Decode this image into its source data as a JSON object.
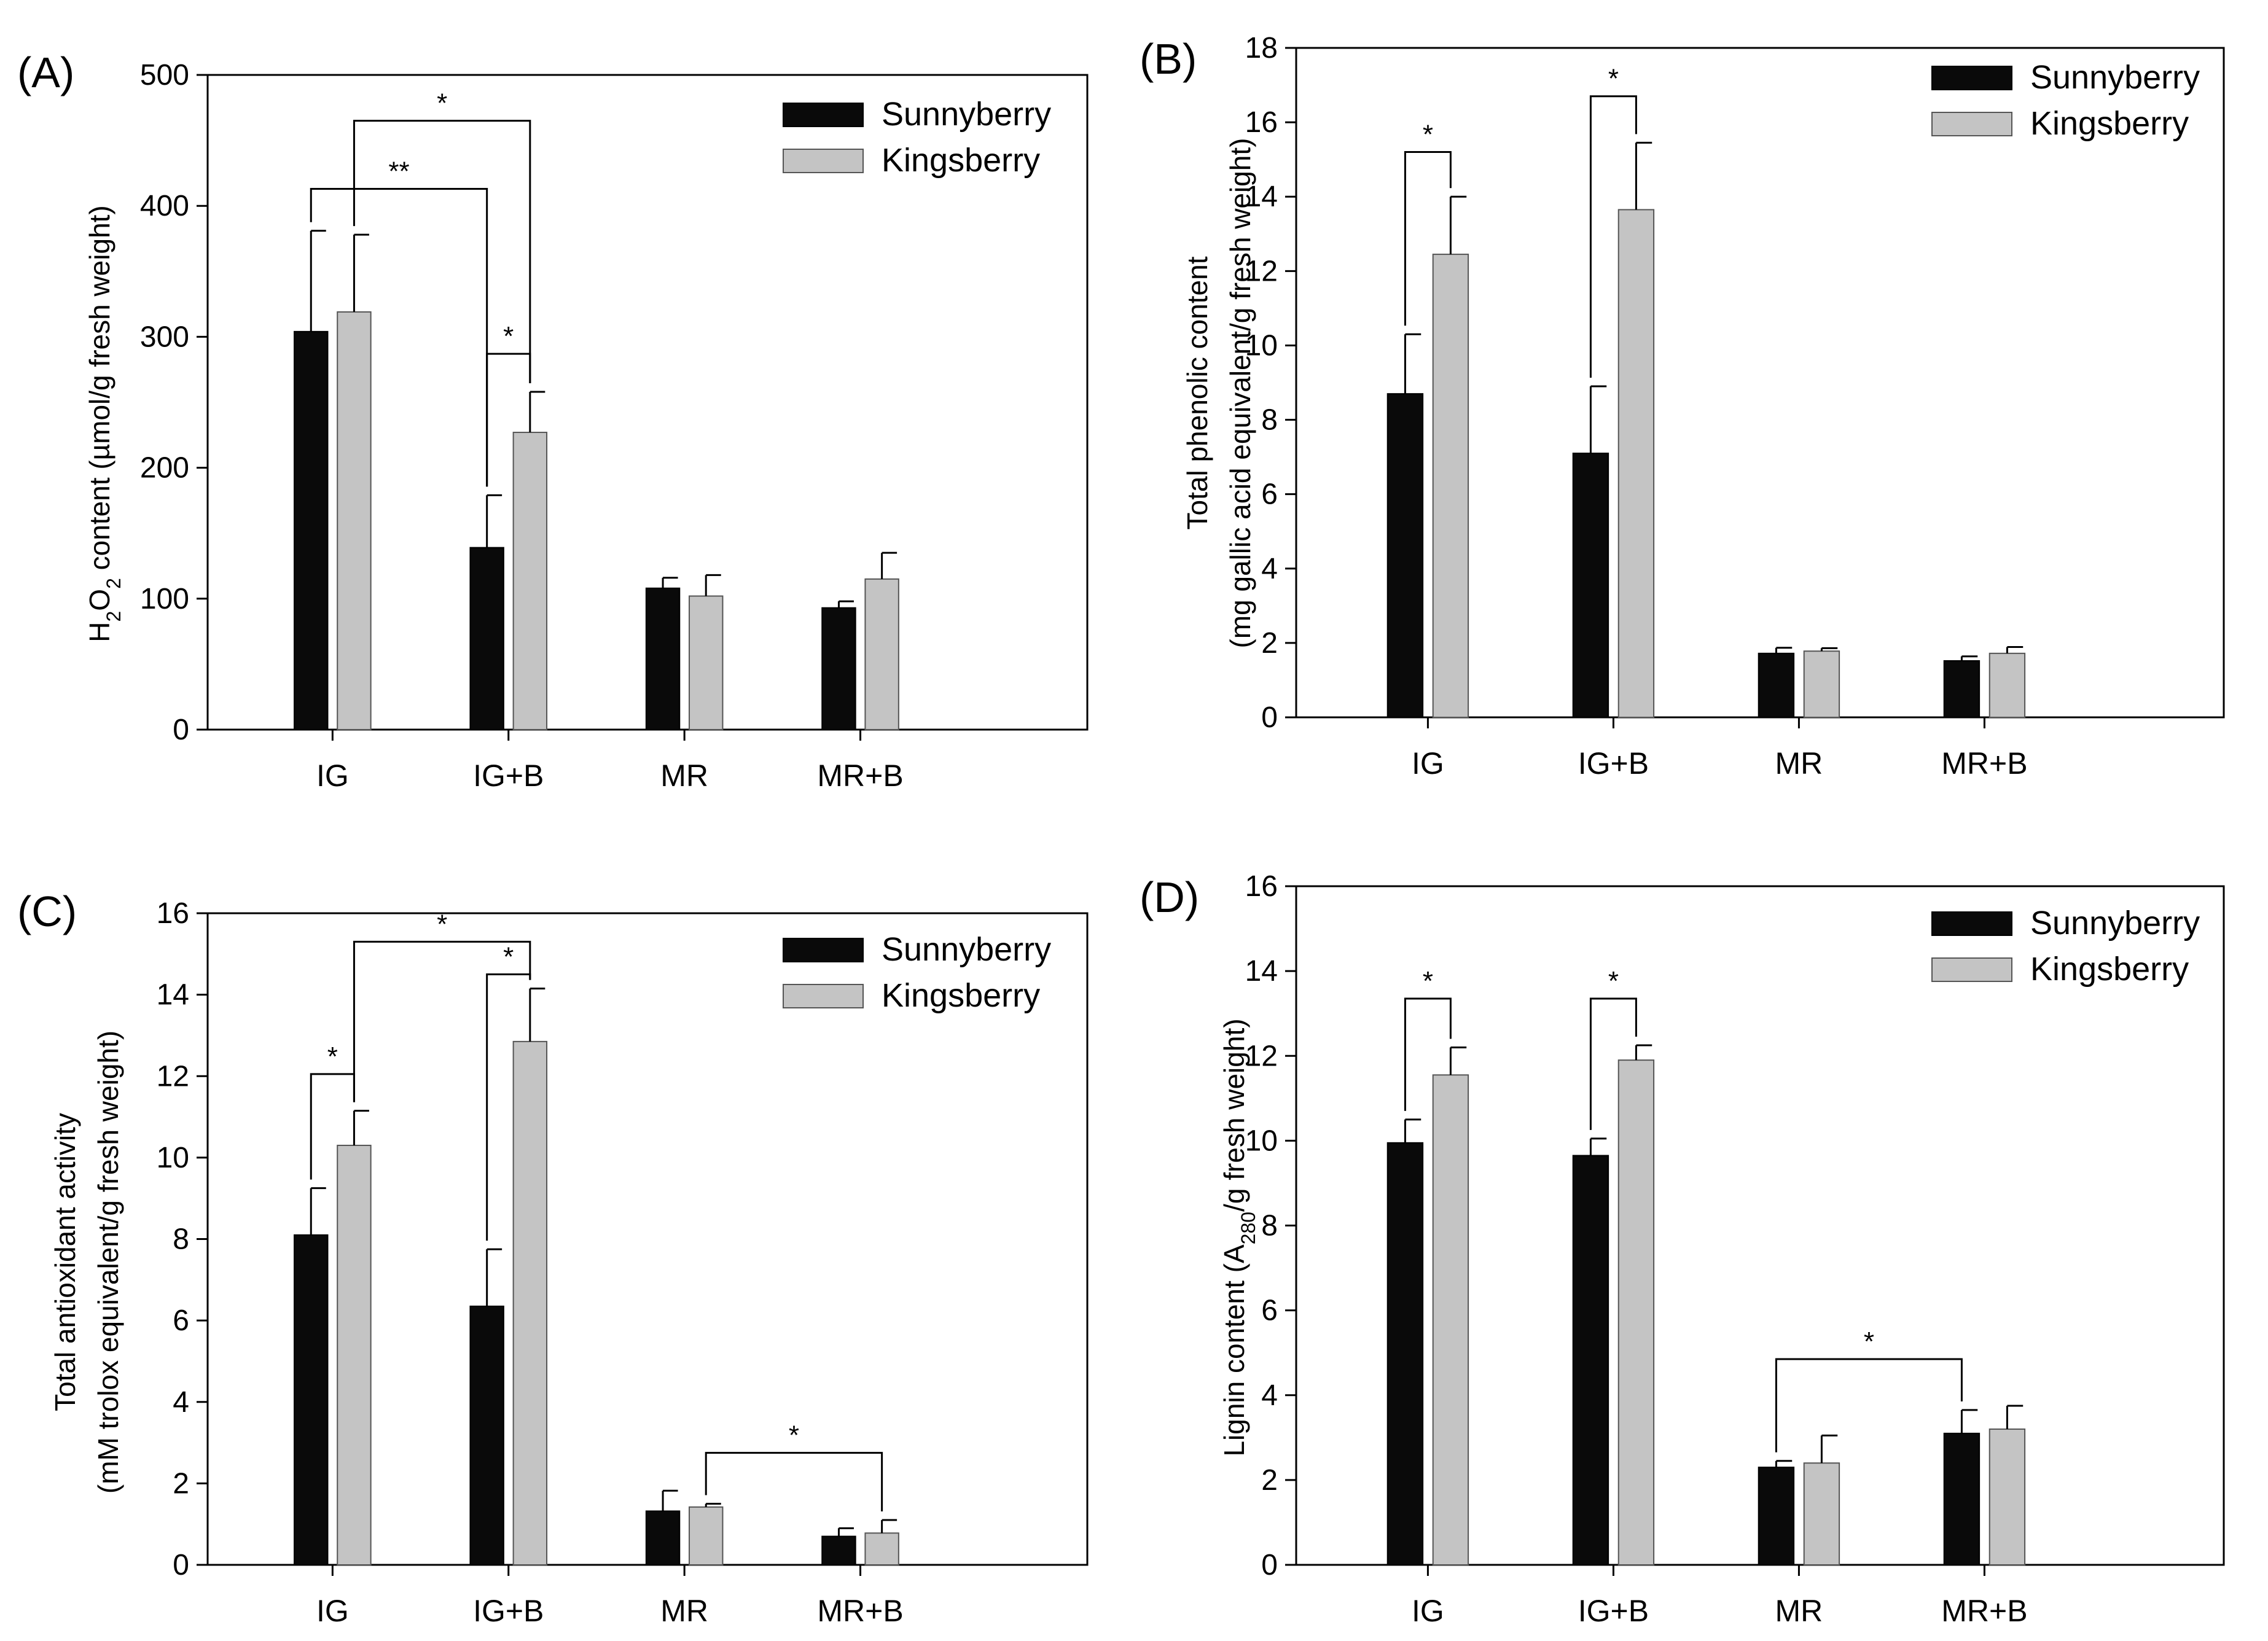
{
  "colors": {
    "series_fill": [
      "#0a0a0a",
      "#c4c4c4"
    ],
    "series_stroke": [
      "#000000",
      "#555555"
    ],
    "axis": "#000000"
  },
  "chart_data": [
    {
      "panel_label": "(A)",
      "type": "bar",
      "categories": [
        "IG",
        "IG+B",
        "MR",
        "MR+B"
      ],
      "series": [
        {
          "name": "Sunnyberry",
          "values": [
            304,
            139,
            108,
            93
          ],
          "errors": [
            77,
            40,
            8,
            5
          ]
        },
        {
          "name": "Kingsberry",
          "values": [
            319,
            227,
            102,
            115
          ],
          "errors": [
            59,
            31,
            16,
            20
          ]
        }
      ],
      "ylabel_pre": "H",
      "ylabel_sub1": "2",
      "ylabel_mid": "O",
      "ylabel_sub2": "2",
      "ylabel_post": " content (µmol/g fresh weight)",
      "ylabel_line2": "",
      "ylim": [
        0,
        500
      ],
      "yticks": [
        0,
        100,
        200,
        300,
        400,
        500
      ],
      "legend": "top-right",
      "grid": false,
      "significance": [
        {
          "from": [
            1,
            0
          ],
          "to": [
            1,
            1
          ],
          "y": 287,
          "label": "*"
        },
        {
          "from": [
            0,
            0
          ],
          "to": [
            1,
            0
          ],
          "y": 413,
          "label": "**"
        },
        {
          "from": [
            0,
            1
          ],
          "to": [
            1,
            1
          ],
          "y": 465,
          "label": "*"
        }
      ]
    },
    {
      "panel_label": "(B)",
      "type": "bar",
      "categories": [
        "IG",
        "IG+B",
        "MR",
        "MR+B"
      ],
      "series": [
        {
          "name": "Sunnyberry",
          "values": [
            8.7,
            7.1,
            1.72,
            1.52
          ],
          "errors": [
            1.6,
            1.8,
            0.15,
            0.12
          ]
        },
        {
          "name": "Kingsberry",
          "values": [
            12.45,
            13.65,
            1.78,
            1.72
          ],
          "errors": [
            1.55,
            1.8,
            0.08,
            0.17
          ]
        }
      ],
      "ylabel_pre": "Total phenolic content",
      "ylabel_sub1": "",
      "ylabel_mid": "",
      "ylabel_sub2": "",
      "ylabel_post": "",
      "ylabel_line2": "(mg gallic acid equivalent/g fresh weight)",
      "ylim": [
        0,
        18
      ],
      "yticks": [
        0,
        2,
        4,
        6,
        8,
        10,
        12,
        14,
        16,
        18
      ],
      "legend": "top-right",
      "grid": false,
      "significance": [
        {
          "from": [
            0,
            0
          ],
          "to": [
            0,
            1
          ],
          "y": 15.2,
          "label": "*"
        },
        {
          "from": [
            1,
            0
          ],
          "to": [
            1,
            1
          ],
          "y": 16.7,
          "label": "*"
        }
      ]
    },
    {
      "panel_label": "(C)",
      "type": "bar",
      "categories": [
        "IG",
        "IG+B",
        "MR",
        "MR+B"
      ],
      "series": [
        {
          "name": "Sunnyberry",
          "values": [
            8.1,
            6.35,
            1.32,
            0.7
          ],
          "errors": [
            1.15,
            1.4,
            0.5,
            0.2
          ]
        },
        {
          "name": "Kingsberry",
          "values": [
            10.3,
            12.85,
            1.42,
            0.78
          ],
          "errors": [
            0.85,
            1.3,
            0.08,
            0.32
          ]
        }
      ],
      "ylabel_pre": "Total antioxidant activity",
      "ylabel_sub1": "",
      "ylabel_mid": "",
      "ylabel_sub2": "",
      "ylabel_post": "",
      "ylabel_line2": "(mM trolox equivalent/g fresh weight)",
      "ylim": [
        0,
        16
      ],
      "yticks": [
        0,
        2,
        4,
        6,
        8,
        10,
        12,
        14,
        16
      ],
      "legend": "top-right",
      "grid": false,
      "significance": [
        {
          "from": [
            0,
            0
          ],
          "to": [
            0,
            1
          ],
          "y": 12.05,
          "label": "*"
        },
        {
          "from": [
            1,
            0
          ],
          "to": [
            1,
            1
          ],
          "y": 14.5,
          "label": "*"
        },
        {
          "from": [
            0,
            1
          ],
          "to": [
            1,
            1
          ],
          "y": 15.3,
          "label": "*"
        },
        {
          "from": [
            2,
            1
          ],
          "to": [
            3,
            1
          ],
          "y": 2.75,
          "label": "*"
        }
      ]
    },
    {
      "panel_label": "(D)",
      "type": "bar",
      "categories": [
        "IG",
        "IG+B",
        "MR",
        "MR+B"
      ],
      "series": [
        {
          "name": "Sunnyberry",
          "values": [
            9.95,
            9.65,
            2.3,
            3.1
          ],
          "errors": [
            0.55,
            0.4,
            0.15,
            0.55
          ]
        },
        {
          "name": "Kingsberry",
          "values": [
            11.55,
            11.9,
            2.4,
            3.2
          ],
          "errors": [
            0.65,
            0.35,
            0.65,
            0.55
          ]
        }
      ],
      "ylabel_pre": "Lignin content (A",
      "ylabel_sub1": "280",
      "ylabel_mid": "/g fresh weight)",
      "ylabel_sub2": "",
      "ylabel_post": "",
      "ylabel_line2": "",
      "ylim": [
        0,
        16
      ],
      "yticks": [
        0,
        2,
        4,
        6,
        8,
        10,
        12,
        14,
        16
      ],
      "legend": "top-right",
      "grid": false,
      "significance": [
        {
          "from": [
            0,
            0
          ],
          "to": [
            0,
            1
          ],
          "y": 13.35,
          "label": "*"
        },
        {
          "from": [
            1,
            0
          ],
          "to": [
            1,
            1
          ],
          "y": 13.35,
          "label": "*"
        },
        {
          "from": [
            2,
            0
          ],
          "to": [
            3,
            0
          ],
          "y": 4.85,
          "label": "*"
        }
      ]
    }
  ]
}
